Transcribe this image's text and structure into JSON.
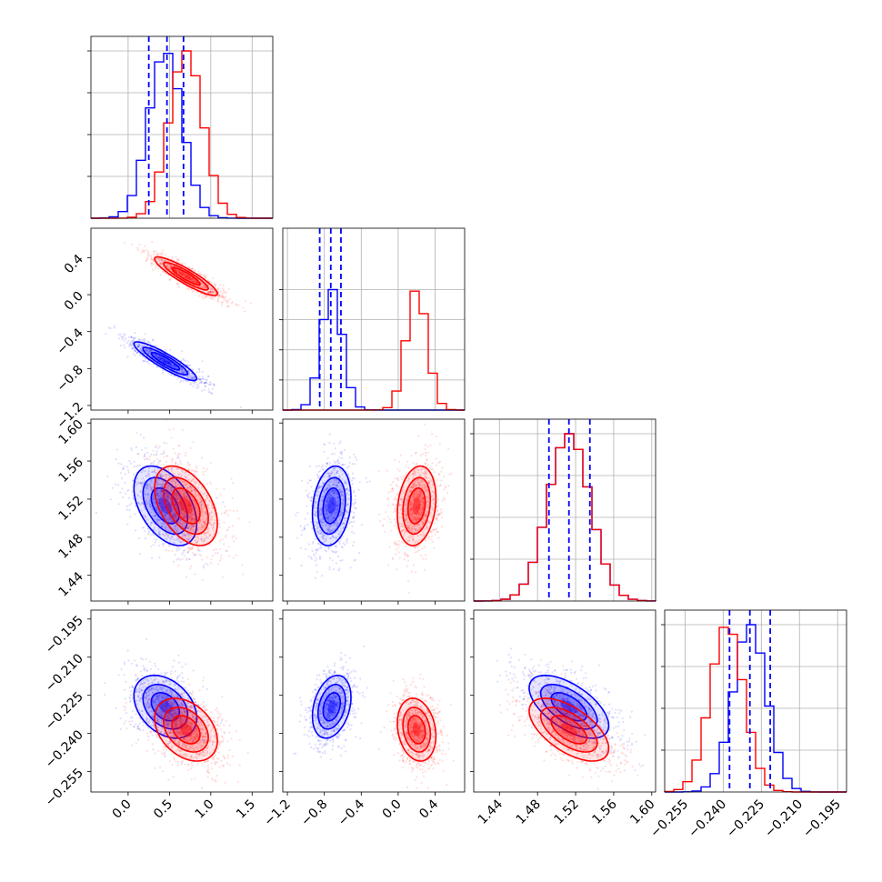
{
  "chart_data": {
    "type": "corner",
    "series": [
      {
        "color": "#0000ff",
        "mean": [
          0.45,
          -0.72,
          1.513,
          -0.2295
        ],
        "std": [
          0.2,
          0.11,
          0.022,
          0.0065
        ],
        "corr": [
          [
            1,
            -0.9,
            -0.45,
            -0.35
          ],
          [
            -0.9,
            1,
            0.2,
            0.3
          ],
          [
            -0.45,
            0.2,
            1,
            -0.6
          ],
          [
            -0.35,
            0.3,
            -0.6,
            1
          ]
        ]
      },
      {
        "color": "#ff0000",
        "mean": [
          0.7,
          0.2,
          1.513,
          -0.2385
        ],
        "std": [
          0.2,
          0.11,
          0.022,
          0.0065
        ],
        "corr": [
          [
            1,
            -0.9,
            -0.45,
            -0.35
          ],
          [
            -0.9,
            1,
            0.2,
            -0.2
          ],
          [
            -0.45,
            0.2,
            1,
            -0.6
          ],
          [
            -0.35,
            -0.2,
            -0.6,
            1
          ]
        ]
      }
    ],
    "quantile_lines": [
      [
        0.25,
        0.47,
        0.67
      ],
      [
        -0.85,
        -0.73,
        -0.62
      ],
      [
        1.492,
        1.513,
        1.535
      ],
      [
        -0.2375,
        -0.2295,
        -0.2215
      ]
    ],
    "ranges": [
      [
        -0.45,
        1.75
      ],
      [
        -1.25,
        0.72
      ],
      [
        1.413,
        1.604
      ],
      [
        -0.263,
        -0.1915
      ]
    ],
    "hist_peak_max": [
      1.0,
      0.72,
      1.0,
      1.0
    ],
    "axis_ticks": [
      [
        0.0,
        0.5,
        1.0,
        1.5
      ],
      [
        -1.2,
        -0.8,
        -0.4,
        0.0,
        0.4
      ],
      [
        1.44,
        1.48,
        1.52,
        1.56,
        1.6
      ],
      [
        -0.255,
        -0.24,
        -0.225,
        -0.21,
        -0.195
      ]
    ],
    "tick_labels": {
      "x0": [
        "0.0",
        "0.5",
        "1.0",
        "1.5"
      ],
      "x1": [
        "−1.2",
        "−0.8",
        "−0.4",
        "0.0",
        "0.4"
      ],
      "x2": [
        "1.44",
        "1.48",
        "1.52",
        "1.56",
        "1.60"
      ],
      "x3": [
        "−0.255",
        "−0.240",
        "−0.225",
        "−0.210",
        "−0.195"
      ],
      "y1": [
        "−1.2",
        "−0.8",
        "−0.4",
        "0.0",
        "0.4"
      ],
      "y2": [
        "1.44",
        "1.48",
        "1.52",
        "1.56",
        "1.60"
      ],
      "y3": [
        "−0.255",
        "−0.240",
        "−0.225",
        "−0.210",
        "−0.195"
      ]
    },
    "grid": true,
    "xlabel": "",
    "ylabel": "",
    "title": ""
  }
}
